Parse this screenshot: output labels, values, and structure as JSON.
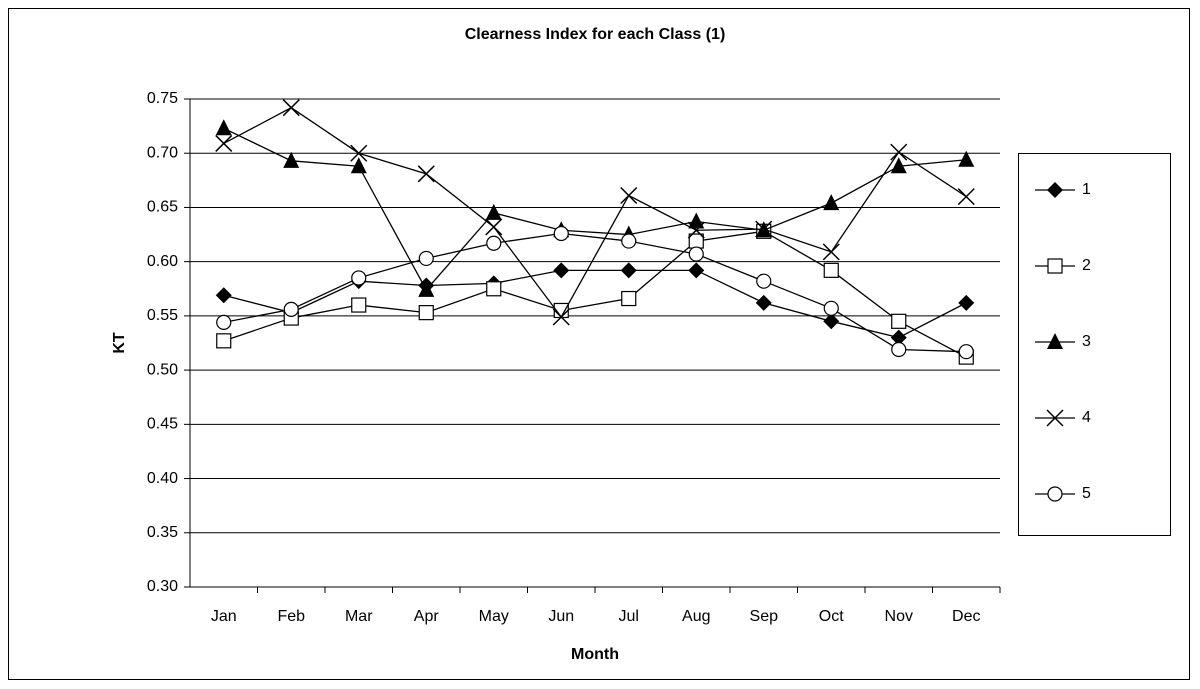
{
  "chart_data": {
    "type": "line",
    "title": "Clearness Index for each Class (1)",
    "x_label": "Month",
    "y_label": "KT",
    "categories": [
      "Jan",
      "Feb",
      "Mar",
      "Apr",
      "May",
      "Jun",
      "Jul",
      "Aug",
      "Sep",
      "Oct",
      "Nov",
      "Dec"
    ],
    "series": [
      {
        "name": "1",
        "color": "#000000",
        "marker": "diamond",
        "values": [
          0.569,
          0.553,
          0.582,
          0.578,
          0.58,
          0.592,
          0.592,
          0.592,
          0.562,
          0.545,
          0.53,
          0.562
        ]
      },
      {
        "name": "2",
        "color": "#000000",
        "marker": "square",
        "values": [
          0.527,
          0.548,
          0.56,
          0.553,
          0.575,
          0.555,
          0.566,
          0.619,
          0.628,
          0.592,
          0.545,
          0.512
        ]
      },
      {
        "name": "3",
        "color": "#000000",
        "marker": "triangle",
        "values": [
          0.723,
          0.693,
          0.688,
          0.574,
          0.645,
          0.629,
          0.625,
          0.637,
          0.629,
          0.654,
          0.688,
          0.694
        ]
      },
      {
        "name": "4",
        "color": "#000000",
        "marker": "x",
        "values": [
          0.709,
          0.742,
          0.7,
          0.681,
          0.632,
          0.549,
          0.661,
          0.629,
          0.63,
          0.609,
          0.701,
          0.66
        ]
      },
      {
        "name": "5",
        "color": "#000000",
        "marker": "circle",
        "values": [
          0.544,
          0.556,
          0.585,
          0.603,
          0.617,
          0.626,
          0.619,
          0.607,
          0.582,
          0.557,
          0.519,
          0.517
        ]
      }
    ],
    "ylim": [
      0.3,
      0.75
    ],
    "yticks": [
      {
        "value": 0.3,
        "label": "0.30"
      },
      0.35,
      {
        "value": 0.4,
        "label": "0.40"
      },
      0.45,
      {
        "value": 0.5,
        "label": "0.50"
      },
      0.55,
      {
        "value": 0.6,
        "label": "0.60"
      },
      0.65,
      {
        "value": 0.7,
        "label": "0.70"
      },
      0.75
    ],
    "grid": true,
    "legend": "right"
  }
}
